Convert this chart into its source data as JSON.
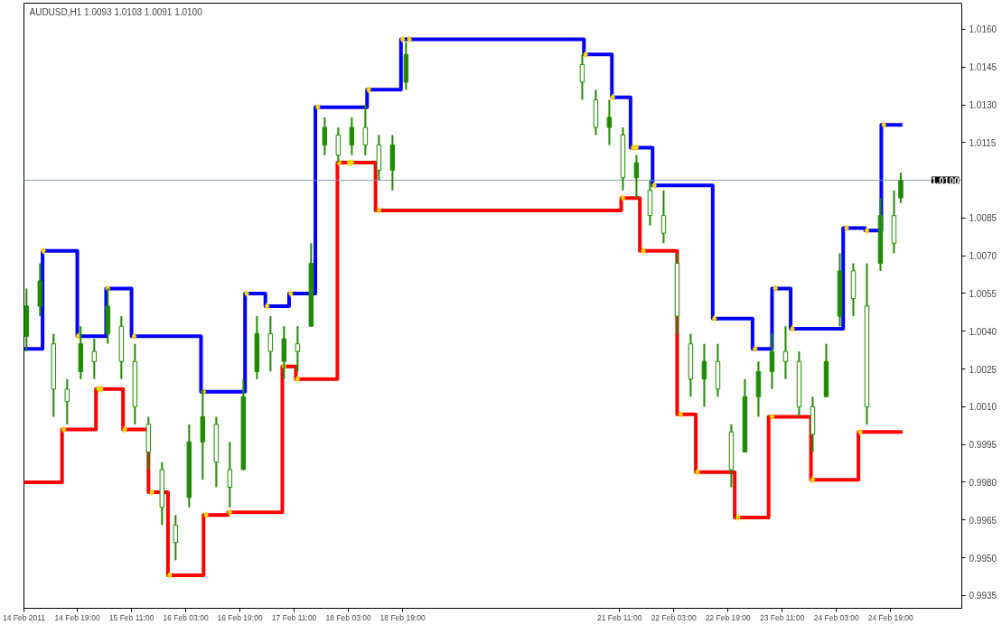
{
  "chart_data": {
    "type": "candlestick",
    "title": "AUDUSD,H1  1.0093 1.0103 1.0091 1.0100",
    "color": "#1f8a00",
    "x": [
      "2011-02-14T04:00",
      "2011-02-14T08:00",
      "2011-02-14T12:00",
      "2011-02-14T16:00",
      "2011-02-14T20:00",
      "2011-02-15T00:00",
      "2011-02-15T04:00",
      "2011-02-15T08:00",
      "2011-02-15T12:00",
      "2011-02-15T16:00",
      "2011-02-15T20:00",
      "2011-02-16T00:00",
      "2011-02-16T04:00",
      "2011-02-16T08:00",
      "2011-02-16T12:00",
      "2011-02-16T16:00",
      "2011-02-16T20:00",
      "2011-02-17T00:00",
      "2011-02-17T04:00",
      "2011-02-17T08:00",
      "2011-02-17T12:00",
      "2011-02-17T16:00",
      "2011-02-17T20:00",
      "2011-02-18T00:00",
      "2011-02-18T04:00",
      "2011-02-18T08:00",
      "2011-02-18T12:00",
      "2011-02-18T16:00",
      "2011-02-18T20:00",
      "2011-02-21T00:00",
      "2011-02-21T04:00",
      "2011-02-21T08:00",
      "2011-02-21T12:00",
      "2011-02-21T16:00",
      "2011-02-21T20:00",
      "2011-02-22T00:00",
      "2011-02-22T04:00",
      "2011-02-22T08:00",
      "2011-02-22T12:00",
      "2011-02-22T16:00",
      "2011-02-22T20:00",
      "2011-02-23T00:00",
      "2011-02-23T04:00",
      "2011-02-23T08:00",
      "2011-02-23T12:00",
      "2011-02-23T16:00",
      "2011-02-23T20:00",
      "2011-02-24T00:00",
      "2011-02-24T04:00",
      "2011-02-24T08:00",
      "2011-02-24T12:00",
      "2011-02-24T16:00",
      "2011-02-24T20:00",
      "2011-02-24T22:00"
    ],
    "ohlc": [
      [
        1.0038,
        1.0057,
        1.0032,
        1.005
      ],
      [
        1.005,
        1.0067,
        1.0046,
        1.006
      ],
      [
        1.0035,
        1.0039,
        1.0006,
        1.0017
      ],
      [
        1.0017,
        1.0021,
        1.0003,
        1.0012
      ],
      [
        1.0024,
        1.0042,
        1.0021,
        1.0035
      ],
      [
        1.0032,
        1.0037,
        1.0021,
        1.0028
      ],
      [
        1.0039,
        1.0057,
        1.0035,
        1.005
      ],
      [
        1.0042,
        1.0046,
        1.0021,
        1.0028
      ],
      [
        1.0028,
        1.0035,
        1.0003,
        1.001
      ],
      [
        1.0003,
        1.0006,
        0.9985,
        0.9992
      ],
      [
        0.9985,
        0.9988,
        0.9963,
        0.997
      ],
      [
        0.9963,
        0.9967,
        0.9949,
        0.9956
      ],
      [
        0.9974,
        1.0003,
        0.997,
        0.9996
      ],
      [
        0.9996,
        1.0017,
        0.9981,
        1.0006
      ],
      [
        1.0003,
        1.0006,
        0.9978,
        0.9988
      ],
      [
        0.9985,
        0.9996,
        0.997,
        0.9978
      ],
      [
        0.9985,
        1.0021,
        0.9985,
        1.0014
      ],
      [
        1.0024,
        1.0046,
        1.0021,
        1.0039
      ],
      [
        1.0039,
        1.0046,
        1.0024,
        1.0032
      ],
      [
        1.0028,
        1.0042,
        1.0021,
        1.0037
      ],
      [
        1.0035,
        1.0042,
        1.0024,
        1.0032
      ],
      [
        1.0042,
        1.0075,
        1.0042,
        1.0067
      ],
      [
        1.0114,
        1.0125,
        1.011,
        1.0121
      ],
      [
        1.0118,
        1.0121,
        1.0107,
        1.011
      ],
      [
        1.0114,
        1.0125,
        1.011,
        1.0121
      ],
      [
        1.0121,
        1.013,
        1.011,
        1.0114
      ],
      [
        1.0114,
        1.0118,
        1.01,
        1.0104
      ],
      [
        1.0104,
        1.0118,
        1.0096,
        1.0114
      ],
      [
        1.0139,
        1.0155,
        1.0136,
        1.015
      ],
      [
        1.0146,
        1.015,
        1.0132,
        1.0139
      ],
      [
        1.0132,
        1.0136,
        1.0118,
        1.0121
      ],
      [
        1.0121,
        1.0132,
        1.0114,
        1.0125
      ],
      [
        1.0118,
        1.0121,
        1.0096,
        1.0101
      ],
      [
        1.0101,
        1.011,
        1.0093,
        1.0107
      ],
      [
        1.0096,
        1.01,
        1.0082,
        1.0086
      ],
      [
        1.0086,
        1.0096,
        1.0075,
        1.0079
      ],
      [
        1.0067,
        1.0071,
        1.0039,
        1.0046
      ],
      [
        1.0035,
        1.0039,
        1.0014,
        1.0021
      ],
      [
        1.0021,
        1.0035,
        1.001,
        1.0028
      ],
      [
        1.0028,
        1.0035,
        1.0014,
        1.0017
      ],
      [
        1.0,
        1.0003,
        0.9978,
        0.9985
      ],
      [
        0.9992,
        1.0021,
        0.9992,
        1.0014
      ],
      [
        1.0014,
        1.0028,
        1.0006,
        1.0024
      ],
      [
        1.0024,
        1.0039,
        1.0017,
        1.0032
      ],
      [
        1.0032,
        1.0042,
        1.0021,
        1.0028
      ],
      [
        1.0028,
        1.0032,
        1.0006,
        1.001
      ],
      [
        1.001,
        1.0014,
        0.9992,
        0.9999
      ],
      [
        1.0014,
        1.0035,
        1.0014,
        1.0028
      ],
      [
        1.0046,
        1.0071,
        1.0042,
        1.0064
      ],
      [
        1.0064,
        1.0067,
        1.0046,
        1.0053
      ],
      [
        1.005,
        1.0067,
        1.0003,
        1.001
      ],
      [
        1.0067,
        1.0093,
        1.0064,
        1.0086
      ],
      [
        1.0086,
        1.0096,
        1.0071,
        1.0075
      ],
      [
        1.0093,
        1.0103,
        1.0091,
        1.01
      ]
    ],
    "series": [
      {
        "type": "step",
        "color": "#0000ff",
        "x": [
          "2011-02-14T03:15",
          "2011-02-14T08:45",
          "2011-02-14T19:00",
          "2011-02-15T03:30",
          "2011-02-15T11:00",
          "2011-02-16T07:30",
          "2011-02-16T20:30",
          "2011-02-17T02:30",
          "2011-02-17T09:30",
          "2011-02-17T17:15",
          "2011-02-18T08:30",
          "2011-02-18T18:30",
          "2011-02-21T00:30",
          "2011-02-21T08:45",
          "2011-02-21T14:15",
          "2011-02-21T20:45",
          "2011-02-22T14:30",
          "2011-02-23T02:15",
          "2011-02-23T08:00",
          "2011-02-23T13:30",
          "2011-02-24T05:00",
          "2011-02-24T11:30",
          "2011-02-24T16:15",
          "2011-02-24T22:30"
        ],
        "values": [
          1.0033,
          1.0072,
          1.0038,
          1.0057,
          1.0038,
          1.0016,
          1.0055,
          1.005,
          1.0055,
          1.0129,
          1.0136,
          1.0156,
          1.015,
          1.0133,
          1.0113,
          1.0098,
          1.0045,
          1.0033,
          1.0057,
          1.0041,
          1.0081,
          1.008,
          1.0122,
          1.0122
        ]
      },
      {
        "type": "step",
        "color": "#ff0000",
        "x": [
          "2011-02-14T03:15",
          "2011-02-14T14:30",
          "2011-02-15T00:30",
          "2011-02-15T08:30",
          "2011-02-15T16:00",
          "2011-02-15T21:45",
          "2011-02-16T08:15",
          "2011-02-16T15:30",
          "2011-02-17T07:30",
          "2011-02-17T11:30",
          "2011-02-17T23:45",
          "2011-02-18T11:00",
          "2011-02-21T11:30",
          "2011-02-21T17:00",
          "2011-02-22T04:00",
          "2011-02-22T09:30",
          "2011-02-22T21:00",
          "2011-02-23T07:00",
          "2011-02-23T19:30",
          "2011-02-24T09:30",
          "2011-02-24T22:30"
        ],
        "values": [
          0.998,
          1.0001,
          1.0017,
          1.0001,
          0.9976,
          0.9943,
          0.9967,
          0.9968,
          1.0026,
          1.0021,
          1.0107,
          1.0088,
          1.0093,
          1.0072,
          1.0007,
          0.9984,
          0.9966,
          1.0006,
          0.9981,
          1.0,
          1.0
        ]
      },
      {
        "type": "scatter",
        "color": "#ffd700",
        "marker": "diamond",
        "x": [
          "2011-02-14T09:00",
          "2011-02-14T19:15",
          "2011-02-15T04:00",
          "2011-02-15T11:45",
          "2011-02-16T08:15",
          "2011-02-16T21:00",
          "2011-02-17T03:00",
          "2011-02-17T10:00",
          "2011-02-17T18:00",
          "2011-02-18T09:00",
          "2011-02-18T19:00",
          "2011-02-18T21:00",
          "2011-02-21T01:00",
          "2011-02-21T09:00",
          "2011-02-21T15:00",
          "2011-02-21T16:00",
          "2011-02-21T21:15",
          "2011-02-22T15:00",
          "2011-02-23T03:00",
          "2011-02-23T09:00",
          "2011-02-23T14:00",
          "2011-02-24T06:00",
          "2011-02-24T12:00",
          "2011-02-24T17:00"
        ],
        "values": [
          1.0072,
          1.0038,
          1.0057,
          1.0038,
          1.0016,
          1.0055,
          1.005,
          1.0055,
          1.0129,
          1.0136,
          1.0156,
          1.0156,
          1.015,
          1.0133,
          1.0113,
          1.0113,
          1.0098,
          1.0045,
          1.0033,
          1.0057,
          1.0041,
          1.0081,
          1.008,
          1.0122
        ]
      },
      {
        "type": "scatter",
        "color": "#ffd700",
        "marker": "diamond",
        "x": [
          "2011-02-14T15:00",
          "2011-02-15T01:15",
          "2011-02-15T02:00",
          "2011-02-15T09:00",
          "2011-02-15T17:00",
          "2011-02-15T22:15",
          "2011-02-16T09:00",
          "2011-02-16T16:00",
          "2011-02-17T08:00",
          "2011-02-17T12:00",
          "2011-02-18T00:15",
          "2011-02-18T03:15",
          "2011-02-18T04:00",
          "2011-02-18T12:00",
          "2011-02-21T12:00",
          "2011-02-21T18:00",
          "2011-02-22T05:00",
          "2011-02-22T10:00",
          "2011-02-22T22:00",
          "2011-02-23T08:00",
          "2011-02-23T20:00",
          "2011-02-24T10:00"
        ],
        "values": [
          1.0001,
          1.0017,
          1.0017,
          1.0001,
          0.9976,
          0.9943,
          0.9967,
          0.9968,
          1.0026,
          1.0021,
          1.0107,
          1.0107,
          1.0107,
          1.0088,
          1.0093,
          1.0072,
          1.0007,
          0.9984,
          0.9966,
          1.0006,
          0.9981,
          1.0
        ]
      }
    ],
    "xlim": [
      "2011-02-14T03:15",
      "2011-02-25T16:00"
    ],
    "xticks": [
      {
        "value": "2011-02-14T03:15",
        "label": "14 Feb 2011"
      },
      {
        "value": "2011-02-14T19:00",
        "label": "14 Feb 19:00"
      },
      {
        "value": "2011-02-15T11:00",
        "label": "15 Feb 11:00"
      },
      {
        "value": "2011-02-16T03:00",
        "label": "16 Feb 03:00"
      },
      {
        "value": "2011-02-16T19:00",
        "label": "16 Feb 19:00"
      },
      {
        "value": "2011-02-17T11:00",
        "label": "17 Feb 11:00"
      },
      {
        "value": "2011-02-18T03:00",
        "label": "18 Feb 03:00"
      },
      {
        "value": "2011-02-18T19:00",
        "label": "18 Feb 19:00"
      },
      {
        "value": "2011-02-21T11:00",
        "label": "21 Feb 11:00"
      },
      {
        "value": "2011-02-22T03:00",
        "label": "22 Feb 03:00"
      },
      {
        "value": "2011-02-22T19:00",
        "label": "22 Feb 19:00"
      },
      {
        "value": "2011-02-23T11:00",
        "label": "23 Feb 11:00"
      },
      {
        "value": "2011-02-24T03:00",
        "label": "24 Feb 03:00"
      },
      {
        "value": "2011-02-24T19:00",
        "label": "24 Feb 19:00"
      }
    ],
    "ylim": [
      0.99299,
      1.01704
    ],
    "yticks": [
      {
        "value": 0.9935,
        "label": "0.9935"
      },
      {
        "value": 0.995,
        "label": "0.9950"
      },
      {
        "value": 0.9965,
        "label": "0.9965"
      },
      {
        "value": 0.998,
        "label": "0.9980"
      },
      {
        "value": 0.9995,
        "label": "0.9995"
      },
      {
        "value": 1.001,
        "label": "1.0010"
      },
      {
        "value": 1.0025,
        "label": "1.0025"
      },
      {
        "value": 1.004,
        "label": "1.0040"
      },
      {
        "value": 1.0055,
        "label": "1.0055"
      },
      {
        "value": 1.007,
        "label": "1.0070"
      },
      {
        "value": 1.0085,
        "label": "1.0085"
      },
      {
        "value": 1.0115,
        "label": "1.0115"
      },
      {
        "value": 1.013,
        "label": "1.0130"
      },
      {
        "value": 1.0145,
        "label": "1.0145"
      },
      {
        "value": 1.016,
        "label": "1.0160"
      }
    ],
    "ref_lines": [
      {
        "axis": "y",
        "value": 1.01,
        "label": "1.0100",
        "color": "#8c9aa8"
      }
    ],
    "grid": false
  }
}
